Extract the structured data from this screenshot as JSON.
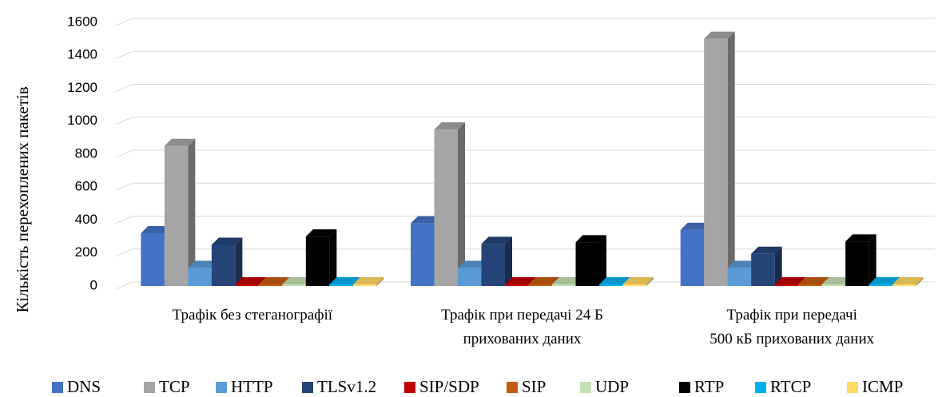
{
  "chart_data": {
    "type": "bar3d",
    "y_label": "Кількість перехоплених пакетів",
    "categories": [
      [
        "Трафік без стеганографії"
      ],
      [
        "Трафік при передачі 24 Б",
        "прихованих даних"
      ],
      [
        "Трафік при передачі",
        "500 кБ прихованих даних"
      ]
    ],
    "ylim": [
      0,
      1600
    ],
    "yticks": [
      0,
      200,
      400,
      600,
      800,
      1000,
      1200,
      1400,
      1600
    ],
    "grid": true,
    "series": [
      {
        "name": "DNS",
        "color": "#4472c4",
        "values": [
          320,
          380,
          340
        ]
      },
      {
        "name": "TCP",
        "color": "#a5a5a5",
        "values": [
          850,
          950,
          1500
        ]
      },
      {
        "name": "HTTP",
        "color": "#5b9bd5",
        "values": [
          110,
          110,
          110
        ]
      },
      {
        "name": "TLSv1.2",
        "color": "#264478",
        "values": [
          250,
          255,
          195
        ]
      },
      {
        "name": "SIP/SDP",
        "color": "#c00000",
        "values": [
          10,
          10,
          10
        ]
      },
      {
        "name": "SIP",
        "color": "#c55a11",
        "values": [
          10,
          10,
          10
        ]
      },
      {
        "name": "UDP",
        "color": "#c5e0b4",
        "values": [
          10,
          10,
          10
        ]
      },
      {
        "name": "RTP",
        "color": "#000000",
        "values": [
          300,
          265,
          270
        ]
      },
      {
        "name": "RTCP",
        "color": "#00b0f0",
        "values": [
          10,
          10,
          10
        ]
      },
      {
        "name": "ICMP",
        "color": "#ffd966",
        "values": [
          10,
          10,
          10
        ]
      }
    ],
    "legend": "bottom"
  }
}
